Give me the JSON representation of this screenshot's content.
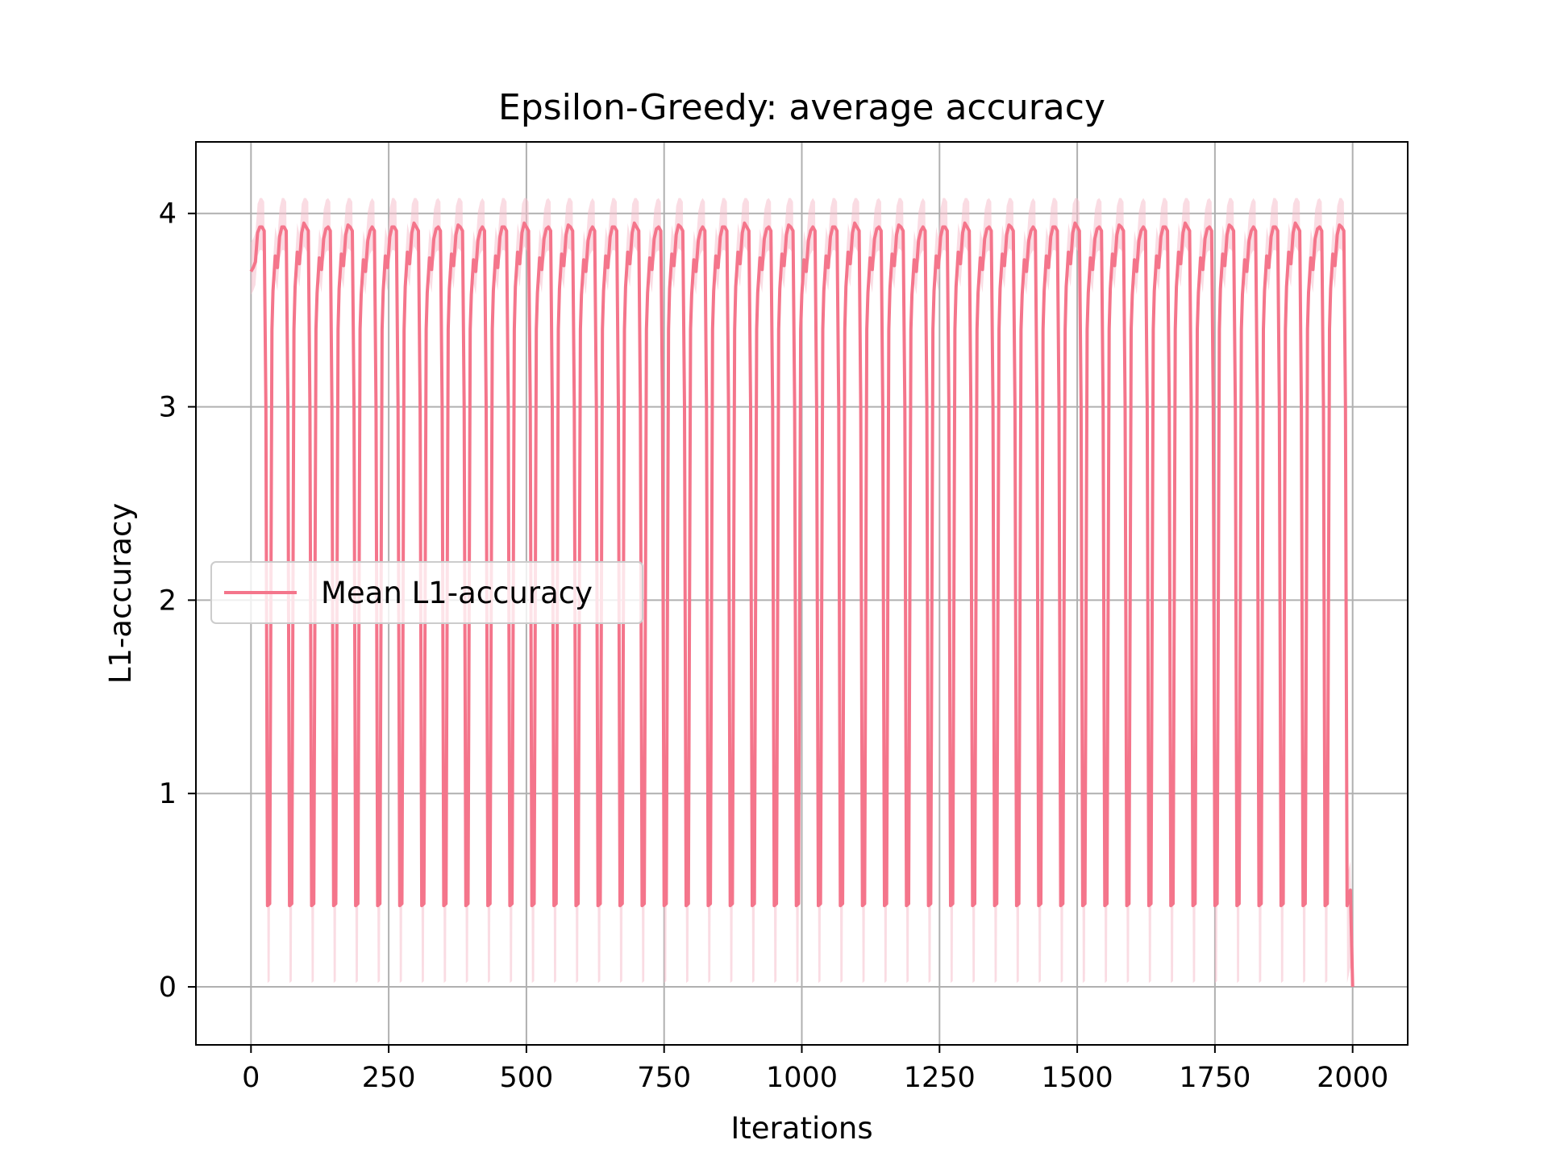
{
  "chart_data": {
    "type": "line",
    "title": "Epsilon-Greedy: average accuracy",
    "xlabel": "Iterations",
    "ylabel": "L1-accuracy",
    "xlim": [
      -100,
      2100
    ],
    "ylim": [
      -0.3,
      4.37
    ],
    "xticks": [
      0,
      250,
      500,
      750,
      1000,
      1250,
      1500,
      1750,
      2000
    ],
    "yticks": [
      0,
      1,
      2,
      3,
      4
    ],
    "grid": true,
    "legend": {
      "placement": "center-left",
      "entries": [
        "Mean L1-accuracy"
      ]
    },
    "colors": {
      "line": "#f4758b",
      "band": "#f5c0cc",
      "grid": "#b0b0b0"
    },
    "series": [
      {
        "name": "Mean L1-accuracy",
        "x_start": 0,
        "x_end": 2000,
        "cycle_length": 40,
        "cycles": 50,
        "peak_value": 3.93,
        "trough_value": 0.42,
        "start_value": 3.7,
        "end_value": 0.0,
        "band_upper": 4.08,
        "band_lower": 0.02
      }
    ]
  }
}
